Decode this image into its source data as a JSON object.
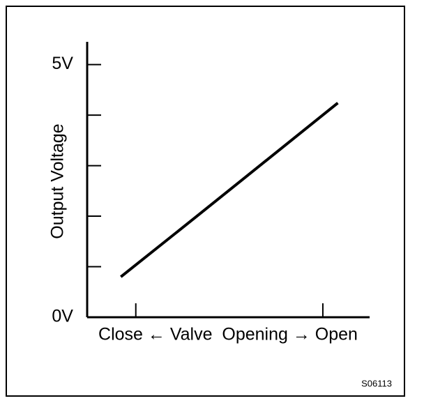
{
  "chart_data": {
    "type": "line",
    "y_label": "Output Voltage",
    "x_label": "Close ← Valve  Opening → Open",
    "code": "S06113",
    "x": [
      -0.08,
      0.32,
      1.08
    ],
    "values": [
      0.8,
      1.98,
      4.24
    ],
    "color": "#000000",
    "xlim": [
      -0.26,
      1.25
    ],
    "xminorticks": [
      0,
      1
    ],
    "ylim": [
      0,
      5.45
    ],
    "yticks": [
      {
        "value": 0,
        "label": "0V"
      },
      {
        "value": 5,
        "label": "5V"
      }
    ],
    "yminorticks": [
      1,
      2,
      3,
      4
    ]
  }
}
